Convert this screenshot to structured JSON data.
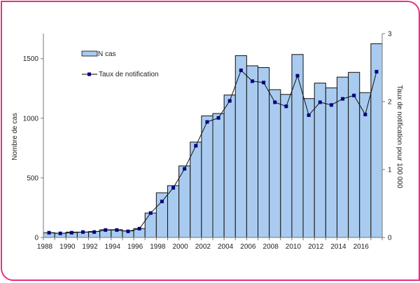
{
  "chart_data": {
    "type": "bar+line",
    "title": "",
    "categories": [
      1988,
      1989,
      1990,
      1991,
      1992,
      1993,
      1994,
      1995,
      1996,
      1997,
      1998,
      1999,
      2000,
      2001,
      2002,
      2003,
      2004,
      2005,
      2006,
      2007,
      2008,
      2009,
      2010,
      2011,
      2012,
      2013,
      2014,
      2015,
      2016,
      2017
    ],
    "x_tick_labels": [
      "1988",
      "1990",
      "1992",
      "1994",
      "1996",
      "1998",
      "2000",
      "2002",
      "2004",
      "2006",
      "2008",
      "2010",
      "2012",
      "2014",
      "2016"
    ],
    "series": [
      {
        "name": "N cas",
        "type": "bar",
        "axis": "left",
        "color": "#a9cbef",
        "values": [
          40,
          35,
          45,
          45,
          50,
          65,
          65,
          55,
          75,
          205,
          375,
          435,
          600,
          800,
          1020,
          1040,
          1195,
          1525,
          1440,
          1425,
          1240,
          1200,
          1535,
          1165,
          1295,
          1255,
          1345,
          1385,
          1215,
          1625
        ]
      },
      {
        "name": "Taux de notification",
        "type": "line",
        "axis": "right",
        "color": "#000080",
        "values": [
          0.07,
          0.06,
          0.07,
          0.08,
          0.08,
          0.11,
          0.11,
          0.09,
          0.13,
          0.36,
          0.53,
          0.73,
          1.01,
          1.35,
          1.7,
          1.76,
          2.01,
          2.46,
          2.3,
          2.28,
          1.99,
          1.93,
          2.38,
          1.8,
          1.99,
          1.95,
          2.04,
          2.09,
          1.81,
          2.44
        ]
      }
    ],
    "ylabel": "Nombre de cas",
    "ylabel_right": "Taux de notification pour 100 000",
    "ylim": [
      0,
      1710
    ],
    "ylim_right": [
      0,
      3
    ],
    "y_ticks": [
      "0",
      "500",
      "1000",
      "1500"
    ],
    "y_ticks_right": [
      "0",
      "1",
      "2",
      "3"
    ],
    "grid": false,
    "legend_position": "top-left"
  },
  "frame_color": "#e8317f"
}
